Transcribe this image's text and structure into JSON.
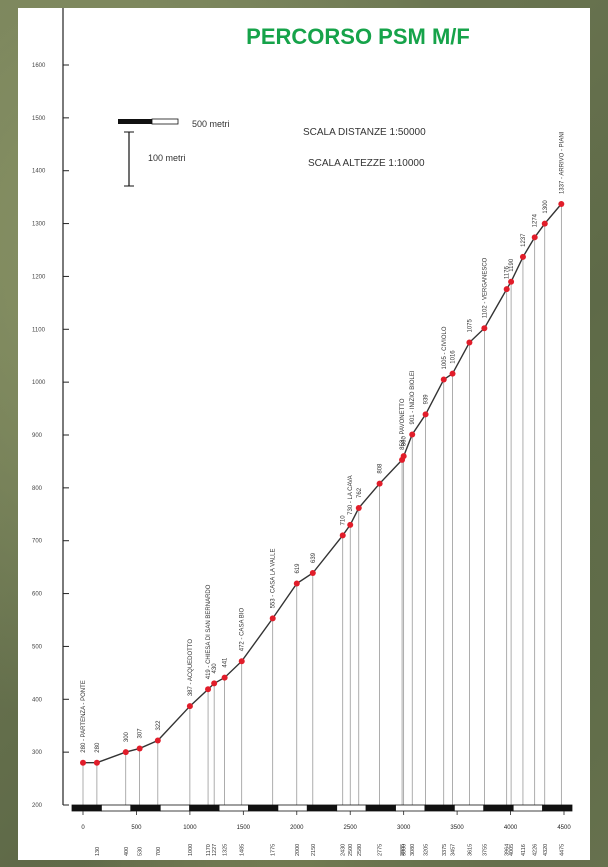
{
  "title": "PERCORSO PSM M/F",
  "scale": {
    "distance_note": "500 metri",
    "height_note": "100 metri",
    "scala_distanze": "SCALA DISTANZE 1:50000",
    "scala_altezze": "SCALA ALTEZZE 1:10000"
  },
  "colors": {
    "title": "#16a34a",
    "line": "#333333",
    "points": "#e11d2a",
    "axis": "#222222"
  },
  "chart_data": {
    "type": "line",
    "title": "PERCORSO PSM M/F",
    "xlabel": "",
    "ylabel": "",
    "xlim": [
      0,
      4500
    ],
    "ylim": [
      200,
      1600
    ],
    "yticks": [
      200,
      300,
      400,
      500,
      600,
      700,
      800,
      900,
      1000,
      1100,
      1200,
      1300,
      1400,
      1500,
      1600
    ],
    "xticks": [
      0,
      500,
      1000,
      1500,
      2000,
      2500,
      3000,
      3500,
      4000,
      4500
    ],
    "points": [
      {
        "x": 0,
        "y": 280,
        "label": "280 - PARTENZA - PONTE",
        "dist": ""
      },
      {
        "x": 130,
        "y": 280,
        "label": "280",
        "dist": "130"
      },
      {
        "x": 400,
        "y": 300,
        "label": "300",
        "dist": "400"
      },
      {
        "x": 530,
        "y": 307,
        "label": "307",
        "dist": "530"
      },
      {
        "x": 700,
        "y": 322,
        "label": "322",
        "dist": "700"
      },
      {
        "x": 1000,
        "y": 387,
        "label": "387 - ACQUEDOTTO",
        "dist": "1000"
      },
      {
        "x": 1170,
        "y": 419,
        "label": "419 - CHIESA DI SAN BERNARDO",
        "dist": "1170"
      },
      {
        "x": 1227,
        "y": 430,
        "label": "430",
        "dist": "1227"
      },
      {
        "x": 1325,
        "y": 441,
        "label": "441",
        "dist": "1325"
      },
      {
        "x": 1485,
        "y": 472,
        "label": "472 - CASA BIO",
        "dist": "1485"
      },
      {
        "x": 1775,
        "y": 553,
        "label": "553 - CASA LA VALLE",
        "dist": "1775"
      },
      {
        "x": 2000,
        "y": 619,
        "label": "619",
        "dist": "2000"
      },
      {
        "x": 2150,
        "y": 639,
        "label": "639",
        "dist": "2150"
      },
      {
        "x": 2430,
        "y": 710,
        "label": "710",
        "dist": "2430"
      },
      {
        "x": 2500,
        "y": 730,
        "label": "730 - LA CAVA",
        "dist": "2500"
      },
      {
        "x": 2580,
        "y": 762,
        "label": "762",
        "dist": "2580"
      },
      {
        "x": 2775,
        "y": 808,
        "label": "808",
        "dist": "2775"
      },
      {
        "x": 2985,
        "y": 853,
        "label": "853 - PAVONETTO",
        "dist": "2985"
      },
      {
        "x": 3000,
        "y": 860,
        "label": "860",
        "dist": "3000"
      },
      {
        "x": 3080,
        "y": 901,
        "label": "901 - INIZIO BIOLEI",
        "dist": "3080"
      },
      {
        "x": 3205,
        "y": 939,
        "label": "939",
        "dist": "3205"
      },
      {
        "x": 3375,
        "y": 1005,
        "label": "1005 - CIVIOLO",
        "dist": "3375"
      },
      {
        "x": 3457,
        "y": 1016,
        "label": "1016",
        "dist": "3457"
      },
      {
        "x": 3615,
        "y": 1075,
        "label": "1075",
        "dist": "3615"
      },
      {
        "x": 3755,
        "y": 1102,
        "label": "1102 - VERGANESCO",
        "dist": "3755"
      },
      {
        "x": 3964,
        "y": 1176,
        "label": "1176",
        "dist": "3964"
      },
      {
        "x": 4005,
        "y": 1190,
        "label": "1190",
        "dist": "4005"
      },
      {
        "x": 4116,
        "y": 1237,
        "label": "1237",
        "dist": "4116"
      },
      {
        "x": 4226,
        "y": 1274,
        "label": "1274",
        "dist": "4226"
      },
      {
        "x": 4320,
        "y": 1300,
        "label": "1300",
        "dist": "4320"
      },
      {
        "x": 4475,
        "y": 1337,
        "label": "1337 - ARRIVO - PIANI",
        "dist": "4475"
      }
    ]
  }
}
